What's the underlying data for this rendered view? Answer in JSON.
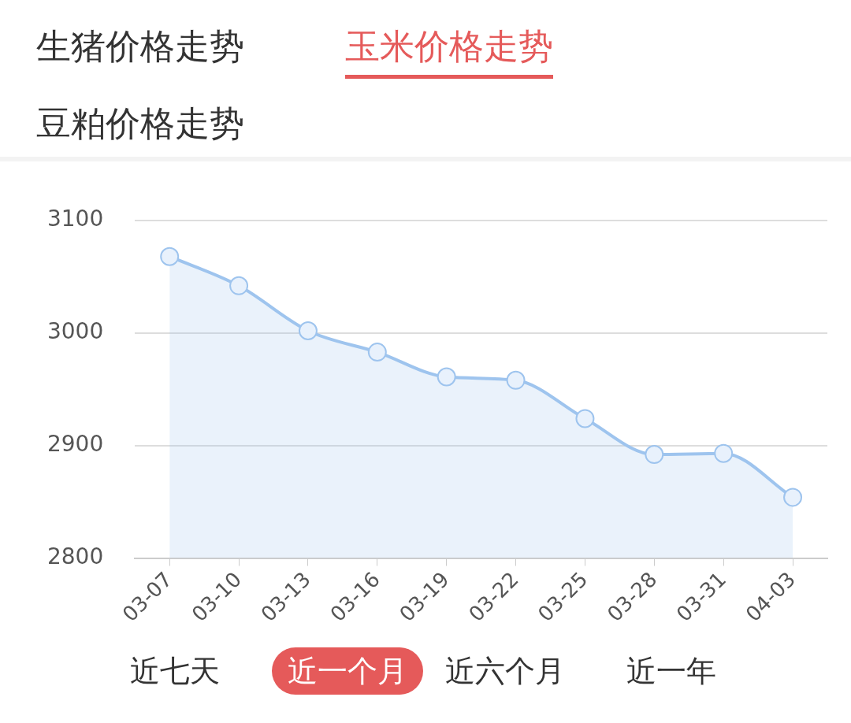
{
  "chart_data": {
    "type": "area",
    "title": "玉米价格走势",
    "subtitle": "近一个月",
    "annotations": [
      "生猪价格走势",
      "豆粕价格走势",
      "近七天",
      "近六个月",
      "近一年"
    ],
    "categories": [
      "03-07",
      "03-10",
      "03-13",
      "03-16",
      "03-19",
      "03-22",
      "03-25",
      "03-28",
      "03-31",
      "04-03"
    ],
    "series": [
      {
        "color": "#9ec4ee",
        "values": [
          3068,
          3042,
          3002,
          2983,
          2961,
          2958,
          2924,
          2892,
          2893,
          2854
        ]
      }
    ],
    "ylim": [
      2800,
      3100
    ],
    "yticks": [
      2800,
      2900,
      3000,
      3100
    ],
    "grid": "y",
    "legend": false,
    "marker": "circle",
    "line_style": "solid"
  }
}
